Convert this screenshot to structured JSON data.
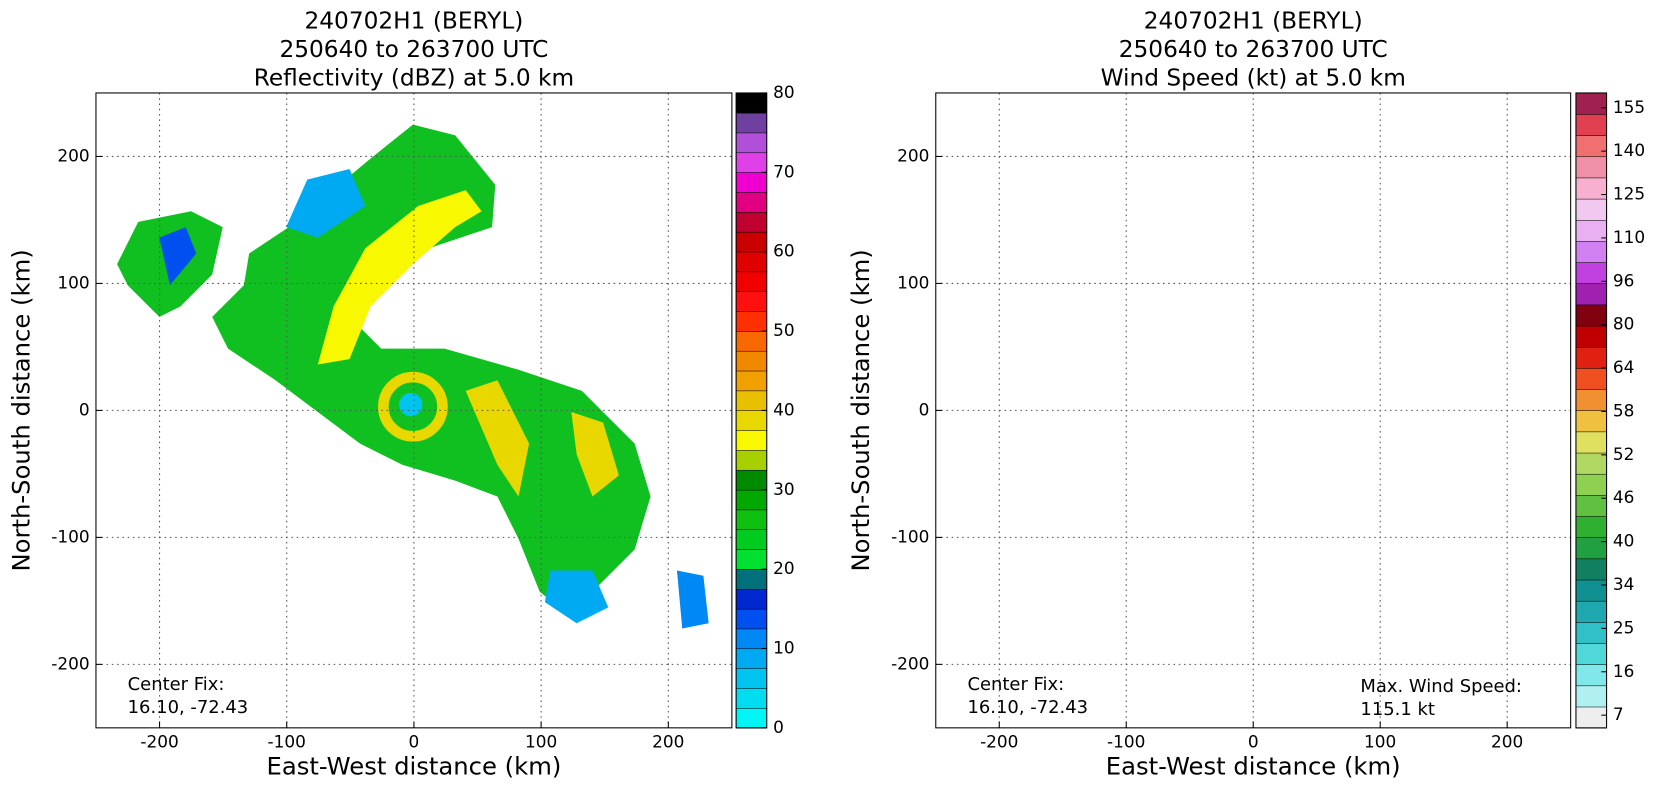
{
  "chart_data": [
    {
      "type": "heatmap",
      "title": [
        "240702H1 (BERYL)",
        "250640 to 263700 UTC",
        "Reflectivity (dBZ) at 5.0 km"
      ],
      "xlabel": "East-West distance (km)",
      "ylabel": "North-South distance (km)",
      "xlim": [
        -250,
        250
      ],
      "ylim": [
        -250,
        250
      ],
      "xticks": [
        -200,
        -100,
        0,
        100,
        200
      ],
      "yticks": [
        -200,
        -100,
        0,
        100,
        200
      ],
      "grid": true,
      "colorbar": {
        "scale": "linear",
        "lim": [
          0,
          80
        ],
        "ticks": [
          0,
          10,
          20,
          30,
          40,
          50,
          60,
          70,
          80
        ],
        "colors": [
          "#00f5f5",
          "#00dcf0",
          "#00c4f0",
          "#00aaf2",
          "#0088f5",
          "#0050f0",
          "#0028d0",
          "#00707a",
          "#00e030",
          "#00cc20",
          "#10c010",
          "#00a800",
          "#008a00",
          "#a8d000",
          "#f8f800",
          "#e8d800",
          "#e8c000",
          "#f0a000",
          "#f08800",
          "#f86800",
          "#ff3000",
          "#ff1010",
          "#f00000",
          "#e00000",
          "#c80000",
          "#c00030",
          "#e00080",
          "#f000d0",
          "#e040e8",
          "#b050d8",
          "#7040a0",
          "#000000"
        ]
      },
      "center_fix": [
        "Center Fix:",
        "16.10, -72.43"
      ]
    },
    {
      "type": "heatmap",
      "title": [
        "240702H1 (BERYL)",
        "250640 to 263700 UTC",
        "Wind Speed (kt) at 5.0 km"
      ],
      "xlabel": "East-West distance (km)",
      "ylabel": "North-South distance (km)",
      "xlim": [
        -250,
        250
      ],
      "ylim": [
        -250,
        250
      ],
      "xticks": [
        -200,
        -100,
        0,
        100,
        200
      ],
      "yticks": [
        -200,
        -100,
        0,
        100,
        200
      ],
      "grid": true,
      "colorbar": {
        "scale": "levels",
        "ticks": [
          7,
          16,
          25,
          34,
          40,
          46,
          52,
          58,
          64,
          80,
          96,
          110,
          125,
          140,
          155
        ],
        "colors": [
          "#eeeeee",
          "#b0f0f0",
          "#80e8e8",
          "#50d8d8",
          "#30c0c8",
          "#20a8b0",
          "#109090",
          "#108060",
          "#20a040",
          "#30b030",
          "#60c040",
          "#90d050",
          "#b0d860",
          "#e0e060",
          "#f0c040",
          "#f09030",
          "#f05020",
          "#e02010",
          "#c00000",
          "#800010",
          "#a020b0",
          "#c040e0",
          "#d080f0",
          "#e8b0f0",
          "#f0c8f0",
          "#f8b0d0",
          "#f090a8",
          "#f07070",
          "#e04050",
          "#a02050"
        ]
      },
      "center_fix": [
        "Center Fix:",
        "16.10, -72.43"
      ],
      "max_wind": [
        "Max. Wind Speed:",
        "115.1 kt"
      ]
    }
  ]
}
